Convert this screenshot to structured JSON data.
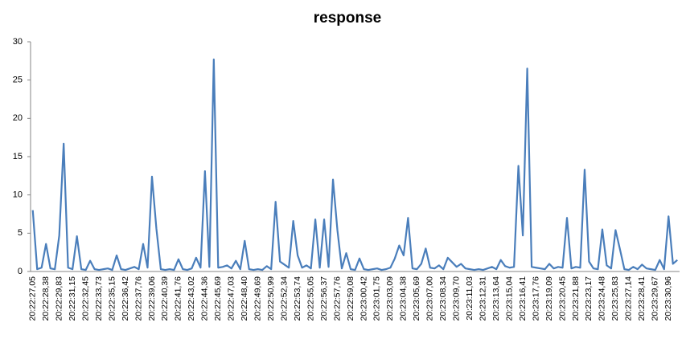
{
  "chart_data": {
    "type": "line",
    "title": "response",
    "categories": [
      "20:22:27,05",
      null,
      null,
      "20:22:28,38",
      null,
      null,
      "20:22:29,83",
      null,
      null,
      "20:22:31,15",
      null,
      null,
      "20:22:32,45",
      null,
      null,
      "20:22:33,73",
      null,
      null,
      "20:22:35,15",
      null,
      null,
      "20:22:36,42",
      null,
      null,
      "20:22:37,76",
      null,
      null,
      "20:22:39,06",
      null,
      null,
      "20:22:40,39",
      null,
      null,
      "20:22:41,76",
      null,
      null,
      "20:22:43,02",
      null,
      null,
      "20:22:44,36",
      null,
      null,
      "20:22:45,69",
      null,
      null,
      "20:22:47,03",
      null,
      null,
      "20:22:48,40",
      null,
      null,
      "20:22:49,69",
      null,
      null,
      "20:22:50,99",
      null,
      null,
      "20:22:52,34",
      null,
      null,
      "20:22:53,74",
      null,
      null,
      "20:22:55,05",
      null,
      null,
      "20:22:56,37",
      null,
      null,
      "20:22:57,76",
      null,
      null,
      "20:22:59,08",
      null,
      null,
      "20:23:00,42",
      null,
      null,
      "20:23:01,75",
      null,
      null,
      "20:23:03,09",
      null,
      null,
      "20:23:04,38",
      null,
      null,
      "20:23:05,69",
      null,
      null,
      "20:23:07,00",
      null,
      null,
      "20:23:08,34",
      null,
      null,
      "20:23:09,70",
      null,
      null,
      "20:23:11,03",
      null,
      null,
      "20:23:12,31",
      null,
      null,
      "20:23:13,64",
      null,
      null,
      "20:23:15,04",
      null,
      null,
      "20:23:16,41",
      null,
      null,
      "20:23:17,76",
      null,
      null,
      "20:23:19,09",
      null,
      null,
      "20:23:20,45",
      null,
      null,
      "20:23:21,88",
      null,
      null,
      "20:23:23,17",
      null,
      null,
      "20:23:24,48",
      null,
      null,
      "20:23:25,83",
      null,
      null,
      "20:23:27,14",
      null,
      null,
      "20:23:28,41",
      null,
      null,
      "20:23:29,67",
      null,
      null,
      "20:23:30,96",
      null,
      null
    ],
    "series": [
      {
        "name": "response",
        "color": "#4a7ebb",
        "values": [
          8,
          0.3,
          0.5,
          3.6,
          0.4,
          0.3,
          4.7,
          16.7,
          0.5,
          0.3,
          4.6,
          0.3,
          0.2,
          1.4,
          0.3,
          0.2,
          0.3,
          0.4,
          0.2,
          2.1,
          0.3,
          0.2,
          0.4,
          0.6,
          0.3,
          3.6,
          0.5,
          12.4,
          5.6,
          0.3,
          0.2,
          0.3,
          0.2,
          1.6,
          0.3,
          0.2,
          0.4,
          1.8,
          0.5,
          13.1,
          0.6,
          27.7,
          0.5,
          0.6,
          0.8,
          0.4,
          1.4,
          0.3,
          4,
          0.3,
          0.2,
          0.3,
          0.2,
          0.7,
          0.3,
          9.1,
          1.3,
          0.9,
          0.5,
          6.6,
          2.1,
          0.5,
          0.8,
          0.4,
          6.8,
          0.5,
          6.8,
          0.6,
          12,
          5.4,
          0.4,
          2.4,
          0.3,
          0.2,
          1.7,
          0.3,
          0.2,
          0.3,
          0.4,
          0.2,
          0.3,
          0.5,
          1.7,
          3.4,
          2.1,
          7,
          0.4,
          0.3,
          1,
          3,
          0.5,
          0.4,
          0.8,
          0.3,
          1.8,
          1.2,
          0.6,
          1,
          0.4,
          0.3,
          0.2,
          0.3,
          0.2,
          0.4,
          0.6,
          0.3,
          1.5,
          0.7,
          0.5,
          0.6,
          13.8,
          4.7,
          26.5,
          0.6,
          0.5,
          0.4,
          0.3,
          1,
          0.4,
          0.6,
          0.5,
          7,
          0.4,
          0.6,
          0.5,
          13.3,
          1.3,
          0.4,
          0.3,
          5.5,
          0.8,
          0.4,
          5.4,
          2.9,
          0.3,
          0.2,
          0.6,
          0.3,
          0.9,
          0.4,
          0.3,
          0.2,
          1.5,
          0.3,
          7.2,
          1,
          1.5
        ]
      }
    ],
    "ylim": [
      0,
      30
    ],
    "yticks": [
      0,
      5,
      10,
      15,
      20,
      25,
      30
    ],
    "grid": false
  }
}
